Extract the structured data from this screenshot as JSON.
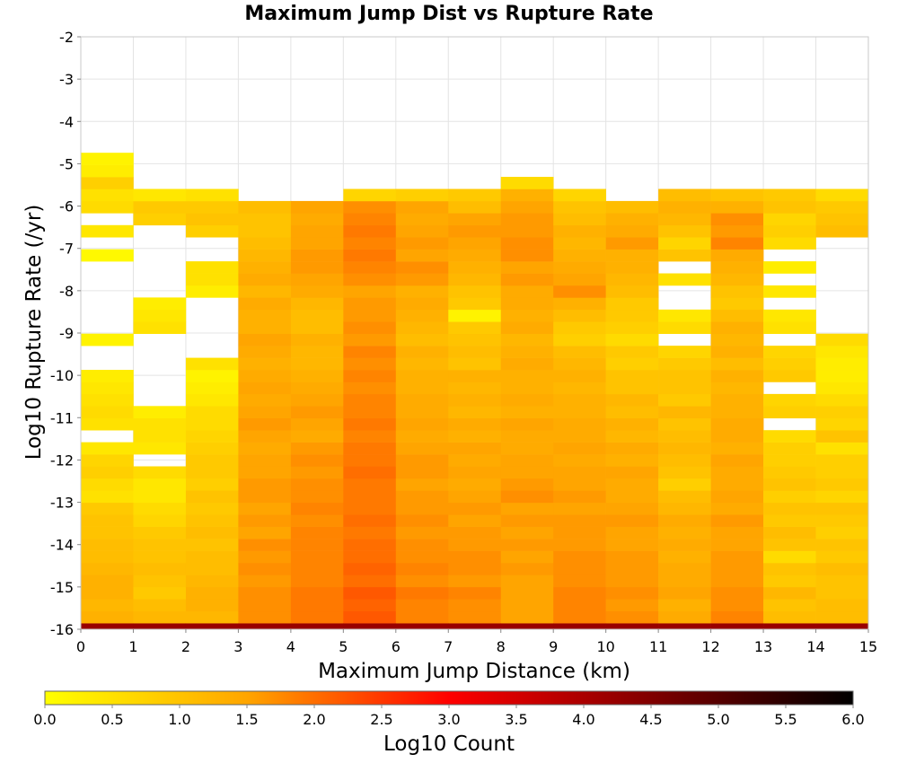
{
  "chart_data": {
    "type": "heatmap",
    "title": "Maximum Jump Dist vs Rupture Rate",
    "xlabel": "Maximum Jump Distance (km)",
    "ylabel": "Log10 Rupture Rate (/yr)",
    "xlim": [
      0,
      15
    ],
    "ylim": [
      -16,
      -2
    ],
    "x_ticks": [
      "0",
      "1",
      "2",
      "3",
      "4",
      "5",
      "6",
      "7",
      "8",
      "9",
      "10",
      "11",
      "12",
      "13",
      "14",
      "15"
    ],
    "y_ticks": [
      "-16",
      "-15",
      "-14",
      "-13",
      "-12",
      "-11",
      "-10",
      "-9",
      "-8",
      "-7",
      "-6",
      "-5",
      "-4",
      "-3",
      "-2"
    ],
    "grid": true,
    "x_bin_width": 1,
    "y_bin_height": 0.285,
    "y_bin_origin": -16.14,
    "colorbar": {
      "label": "Log10 Count",
      "range": [
        0,
        6
      ],
      "ticks": [
        "0.0",
        "0.5",
        "1.0",
        "1.5",
        "2.0",
        "2.5",
        "3.0",
        "3.5",
        "4.0",
        "4.5",
        "5.0",
        "5.5",
        "6.0"
      ],
      "stops": [
        {
          "v": 0.0,
          "c": "#ffff00"
        },
        {
          "v": 1.5,
          "c": "#ffa500"
        },
        {
          "v": 3.0,
          "c": "#ff0000"
        },
        {
          "v": 4.5,
          "c": "#800000"
        },
        {
          "v": 6.0,
          "c": "#000000"
        }
      ]
    },
    "columns": [
      {
        "x": 0,
        "values": [
          4.2,
          1.3,
          1.2,
          1.3,
          1.3,
          1.2,
          1.1,
          1.1,
          1.0,
          1.0,
          0.9,
          0.5,
          0.6,
          0.8,
          0.7,
          0.4,
          null,
          0.5,
          0.6,
          0.5,
          0.4,
          0.3,
          null,
          null,
          0.2,
          null,
          null,
          null,
          null,
          null,
          null,
          0.1,
          null,
          0.4,
          null,
          0.6,
          0.5,
          0.8,
          0.3,
          0.2
        ]
      },
      {
        "x": 1,
        "values": [
          4.2,
          1.2,
          1.1,
          0.9,
          1.0,
          1.1,
          1.0,
          1.0,
          0.9,
          0.7,
          0.6,
          0.4,
          0.4,
          0.6,
          null,
          0.4,
          0.5,
          0.5,
          0.3,
          null,
          null,
          null,
          null,
          null,
          null,
          0.5,
          0.4,
          0.3,
          null,
          null,
          null,
          null,
          null,
          null,
          0.8,
          0.9,
          0.4,
          null,
          null,
          null
        ]
      },
      {
        "x": 2,
        "values": [
          4.2,
          1.2,
          1.3,
          1.3,
          1.2,
          1.1,
          1.1,
          1.0,
          1.1,
          1.0,
          0.9,
          1.0,
          0.8,
          0.9,
          0.9,
          0.8,
          0.7,
          0.6,
          0.6,
          0.4,
          0.3,
          0.2,
          0.5,
          null,
          null,
          null,
          null,
          null,
          0.3,
          0.5,
          0.5,
          null,
          null,
          0.8,
          1.0,
          0.9,
          0.5,
          null,
          null,
          null
        ]
      },
      {
        "x": 3,
        "values": [
          4.2,
          1.7,
          1.7,
          1.7,
          1.6,
          1.7,
          1.6,
          1.7,
          1.5,
          1.6,
          1.5,
          1.6,
          1.6,
          1.5,
          1.5,
          1.4,
          1.5,
          1.6,
          1.5,
          1.4,
          1.5,
          1.4,
          1.3,
          1.4,
          1.5,
          1.3,
          1.3,
          1.4,
          1.2,
          1.4,
          1.3,
          1.2,
          1.1,
          1.0,
          1.0,
          1.1,
          null,
          null,
          null,
          null
        ]
      },
      {
        "x": 4,
        "values": [
          4.2,
          1.9,
          1.9,
          1.9,
          1.8,
          1.8,
          1.8,
          1.8,
          1.8,
          1.7,
          1.8,
          1.7,
          1.7,
          1.6,
          1.7,
          1.6,
          1.4,
          1.5,
          1.6,
          1.5,
          1.4,
          1.3,
          1.2,
          1.2,
          1.3,
          1.1,
          1.1,
          1.2,
          1.4,
          1.5,
          1.6,
          1.6,
          1.5,
          1.5,
          1.4,
          1.5,
          null,
          null,
          null,
          null
        ]
      },
      {
        "x": 5,
        "values": [
          4.2,
          2.2,
          2.1,
          2.2,
          2.0,
          2.1,
          2.0,
          2.0,
          1.9,
          2.0,
          1.9,
          1.9,
          1.9,
          2.0,
          1.9,
          1.9,
          1.8,
          1.9,
          1.8,
          1.8,
          1.7,
          1.8,
          1.7,
          1.8,
          1.6,
          1.7,
          1.6,
          1.6,
          1.5,
          1.7,
          1.8,
          1.9,
          1.8,
          1.9,
          1.8,
          1.7,
          0.7,
          null,
          null,
          null
        ]
      },
      {
        "x": 6,
        "values": [
          4.2,
          1.8,
          1.8,
          1.9,
          1.7,
          1.8,
          1.7,
          1.7,
          1.6,
          1.7,
          1.6,
          1.6,
          1.5,
          1.6,
          1.6,
          1.5,
          1.4,
          1.5,
          1.4,
          1.4,
          1.3,
          1.3,
          1.2,
          1.3,
          1.1,
          1.2,
          1.3,
          1.4,
          1.3,
          1.6,
          1.7,
          1.5,
          1.6,
          1.5,
          1.4,
          1.5,
          0.8,
          null,
          null,
          null
        ]
      },
      {
        "x": 7,
        "values": [
          4.2,
          1.7,
          1.7,
          1.8,
          1.6,
          1.7,
          1.7,
          1.6,
          1.6,
          1.5,
          1.6,
          1.5,
          1.4,
          1.5,
          1.4,
          1.5,
          1.3,
          1.4,
          1.2,
          1.3,
          1.2,
          1.3,
          1.0,
          1.1,
          1.0,
          0.9,
          0.2,
          0.9,
          1.0,
          1.2,
          1.3,
          1.4,
          1.5,
          1.6,
          1.5,
          1.1,
          0.9,
          null,
          null,
          null
        ]
      },
      {
        "x": 8,
        "values": [
          4.2,
          1.5,
          1.5,
          1.5,
          1.5,
          1.6,
          1.5,
          1.6,
          1.5,
          1.6,
          1.5,
          1.7,
          1.6,
          1.5,
          1.5,
          1.4,
          1.4,
          1.5,
          1.3,
          1.4,
          1.3,
          1.3,
          1.4,
          1.3,
          1.2,
          1.4,
          1.3,
          1.4,
          1.4,
          1.6,
          1.5,
          1.7,
          1.7,
          1.6,
          1.6,
          1.5,
          1.3,
          0.6,
          null,
          null
        ]
      },
      {
        "x": 9,
        "values": [
          4.2,
          1.8,
          1.8,
          1.8,
          1.7,
          1.7,
          1.7,
          1.6,
          1.6,
          1.6,
          1.5,
          1.6,
          1.5,
          1.5,
          1.4,
          1.5,
          1.4,
          1.4,
          1.3,
          1.3,
          1.2,
          1.3,
          1.2,
          1.1,
          0.8,
          0.9,
          1.1,
          1.3,
          1.7,
          1.5,
          1.4,
          1.3,
          1.2,
          1.3,
          1.1,
          1.0,
          0.7,
          null,
          null,
          null
        ]
      },
      {
        "x": 10,
        "values": [
          4.2,
          1.7,
          1.6,
          1.7,
          1.6,
          1.6,
          1.6,
          1.5,
          1.5,
          1.6,
          1.5,
          1.4,
          1.4,
          1.5,
          1.3,
          1.4,
          1.2,
          1.3,
          1.1,
          1.2,
          1.0,
          1.0,
          0.8,
          0.9,
          0.6,
          0.8,
          0.9,
          0.9,
          1.1,
          1.2,
          1.3,
          1.3,
          1.6,
          1.4,
          1.3,
          1.1,
          null,
          null,
          null,
          null
        ]
      },
      {
        "x": 11,
        "values": [
          4.2,
          1.4,
          1.3,
          1.5,
          1.4,
          1.4,
          1.3,
          1.4,
          1.3,
          1.4,
          1.2,
          1.1,
          0.8,
          1.0,
          1.1,
          1.2,
          1.1,
          1.0,
          1.2,
          0.9,
          1.0,
          1.0,
          0.9,
          0.7,
          null,
          0.6,
          0.4,
          null,
          null,
          0.5,
          null,
          1.0,
          0.7,
          1.0,
          1.2,
          1.3,
          1.1,
          null,
          null,
          null
        ]
      },
      {
        "x": 12,
        "values": [
          4.2,
          1.8,
          1.7,
          1.7,
          1.6,
          1.6,
          1.6,
          1.5,
          1.5,
          1.6,
          1.4,
          1.5,
          1.4,
          1.4,
          1.5,
          1.3,
          1.4,
          1.4,
          1.3,
          1.3,
          1.2,
          1.3,
          1.1,
          1.3,
          1.2,
          1.3,
          1.1,
          0.9,
          1.0,
          1.2,
          1.3,
          1.4,
          1.8,
          1.6,
          1.7,
          1.3,
          1.0,
          null,
          null,
          null
        ]
      },
      {
        "x": 13,
        "values": [
          4.2,
          1.1,
          1.0,
          1.2,
          0.9,
          1.0,
          0.6,
          1.0,
          1.1,
          0.9,
          1.0,
          0.8,
          1.0,
          0.9,
          0.8,
          0.8,
          0.6,
          null,
          0.8,
          0.7,
          null,
          0.9,
          0.8,
          0.7,
          null,
          0.5,
          0.4,
          null,
          0.4,
          null,
          0.3,
          null,
          0.6,
          0.8,
          0.7,
          1.0,
          0.9,
          null,
          null,
          null
        ]
      },
      {
        "x": 14,
        "values": [
          4.2,
          1.1,
          1.1,
          1.0,
          1.0,
          1.1,
          0.9,
          1.0,
          0.8,
          0.9,
          1.0,
          0.7,
          0.9,
          0.8,
          0.8,
          0.5,
          1.0,
          0.7,
          0.8,
          0.6,
          0.4,
          0.3,
          0.3,
          0.4,
          0.6,
          null,
          null,
          null,
          null,
          null,
          null,
          null,
          null,
          1.1,
          1.0,
          0.9,
          0.6,
          null,
          null,
          null
        ]
      }
    ]
  }
}
